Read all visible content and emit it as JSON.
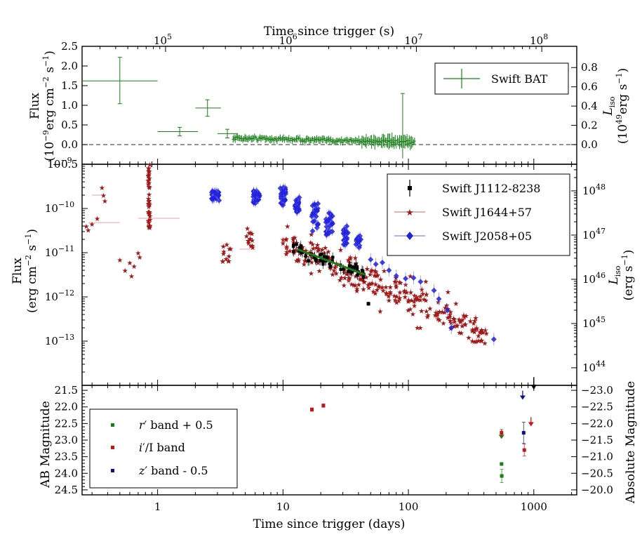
{
  "chart_data": [
    {
      "type": "scatter",
      "panel": "swift-bat",
      "top_xlabel": "Time since trigger (s)",
      "top_xticks": [
        "10",
        "10",
        "10",
        "10"
      ],
      "top_xtick_exps": [
        "5",
        "6",
        "7",
        "8"
      ],
      "top_xtick_values": [
        100000,
        1000000,
        10000000,
        100000000
      ],
      "xlim_days": [
        0.25,
        2200
      ],
      "ylim": [
        -0.5,
        2.5
      ],
      "yticks": [
        "2.5",
        "2.0",
        "1.5",
        "1.0",
        "0.5",
        "0.0",
        "−0.5"
      ],
      "ytick_values": [
        2.5,
        2.0,
        1.5,
        1.0,
        0.5,
        0.0,
        -0.5
      ],
      "ylabel_main": "Flux",
      "ylabel_units_a": "(10",
      "ylabel_units_exp": "−9",
      "ylabel_units_b": "erg cm",
      "ylabel_units_exp2": "−2",
      "ylabel_units_c": " s",
      "ylabel_units_exp3": "−1",
      "ylabel_units_d": ")",
      "right_ylabel_main": "L",
      "right_ylabel_sub": "iso",
      "right_ylabel_units_a": "(10",
      "right_ylabel_units_exp": "49",
      "right_ylabel_units_b": "erg s",
      "right_ylabel_units_exp2": "−1",
      "right_ylabel_units_c": ")",
      "right_ticks": [
        "0.8",
        "0.6",
        "0.4",
        "0.2",
        "0.0"
      ],
      "right_tick_values": [
        0.8,
        0.6,
        0.4,
        0.2,
        0.0
      ],
      "right_scale_flux_per_unit": 2.45,
      "zero_line": "dashed",
      "legend_entry": "Swift BAT",
      "legend_loc": "upper right",
      "color": "#1a7f1a",
      "big_points": [
        {
          "x": 0.5,
          "xlo": 0.25,
          "xhi": 1.0,
          "y": 1.62,
          "ylo": 1.04,
          "yhi": 2.22
        },
        {
          "x": 1.5,
          "xlo": 1.0,
          "xhi": 2.1,
          "y": 0.33,
          "ylo": 0.22,
          "yhi": 0.44
        },
        {
          "x": 2.5,
          "xlo": 2.0,
          "xhi": 3.2,
          "y": 0.93,
          "ylo": 0.72,
          "yhi": 1.14
        },
        {
          "x": 3.6,
          "xlo": 3.0,
          "xhi": 4.3,
          "y": 0.28,
          "ylo": 0.17,
          "yhi": 0.39
        }
      ],
      "dense_range_days": [
        4.0,
        112.0
      ],
      "dense_spike": {
        "x": 90,
        "y": 0.45,
        "ylo": -0.35,
        "yhi": 1.3
      }
    },
    {
      "type": "scatter",
      "panel": "xray",
      "xlim_days": [
        0.25,
        2200
      ],
      "yscale": "log",
      "ylim": [
        1e-14,
        1e-09
      ],
      "ylabel_main": "Flux",
      "ylabel_units_a": "(erg cm",
      "ylabel_units_exp": "−2",
      "ylabel_units_b": " s",
      "ylabel_units_exp2": "−1",
      "ylabel_units_c": ")",
      "yticks_base": [
        "10",
        "10",
        "10",
        "10",
        "10"
      ],
      "ytick_exps": [
        "−9",
        "−10",
        "−11",
        "−12",
        "−13"
      ],
      "ytick_values": [
        1e-09,
        1e-10,
        1e-11,
        1e-12,
        1e-13
      ],
      "right_ylabel_main": "L",
      "right_ylabel_sub": "iso",
      "right_ylabel_units_a": "(erg s",
      "right_ylabel_units_exp": "−1",
      "right_ylabel_units_b": ")",
      "right_ticks_base": [
        "10",
        "10",
        "10",
        "10",
        "10"
      ],
      "right_tick_exps": [
        "48",
        "47",
        "46",
        "45",
        "44"
      ],
      "right_tick_values": [
        1e+48,
        1e+47,
        1e+46,
        1e+45,
        1e+44
      ],
      "lum_per_flux": 4e+57,
      "legend_loc": "upper right",
      "series": [
        {
          "name": "Swift J1112-8238",
          "color": "#000000",
          "marker": "square",
          "range_days": [
            12,
            46
          ],
          "points_start": 1.2e-11,
          "points_end": 3.5e-12,
          "upper_limit": {
            "x": 1000,
            "y": 9.2e-15
          }
        },
        {
          "name": "Swift J1644+57",
          "color": "#a01818",
          "marker": "star",
          "range_days": [
            0.25,
            420
          ]
        },
        {
          "name": "Swift J2058+05",
          "color": "#2020dd",
          "marker": "diamond",
          "range_days": [
            2.7,
            480
          ]
        }
      ],
      "powerlaw_fit": {
        "color": "#1a7f1a",
        "x0": 13,
        "x1": 45,
        "y0": 1.2e-11,
        "y1": 3.2e-12
      }
    },
    {
      "type": "scatter",
      "panel": "optical",
      "xlim_days": [
        0.25,
        2200
      ],
      "xlabel": "Time since trigger (days)",
      "xticks": [
        "1",
        "10",
        "100",
        "1000"
      ],
      "xtick_values": [
        1,
        10,
        100,
        1000
      ],
      "ylim": [
        24.65,
        21.35
      ],
      "ylabel": "AB Magnitude",
      "yticks": [
        "21.5",
        "22.0",
        "22.5",
        "23.0",
        "23.5",
        "24.0",
        "24.5"
      ],
      "ytick_values": [
        21.5,
        22.0,
        22.5,
        23.0,
        23.5,
        24.0,
        24.5
      ],
      "right_ylabel": "Absolute Magnitude",
      "right_ticks": [
        "−23.0",
        "−22.5",
        "−22.0",
        "−21.5",
        "−21.0",
        "−20.5",
        "−20.0"
      ],
      "right_tick_values": [
        -23.0,
        -22.5,
        -22.0,
        -21.5,
        -21.0,
        -20.5,
        -20.0
      ],
      "distance_modulus": 44.5,
      "legend_loc": "lower left",
      "series": [
        {
          "name": "r′ band + 0.5",
          "label_italic": "r",
          "label_rest": "′ band + 0.5",
          "color": "#1a7f1a",
          "points": [
            {
              "x": 553,
              "y": 23.72,
              "err": 0.0
            },
            {
              "x": 555,
              "y": 24.08,
              "err": 0.2
            }
          ],
          "upper_limits": [
            {
              "x": 553,
              "y": 22.88
            }
          ]
        },
        {
          "name": "i′/I band",
          "label_italic": "i",
          "label_rest": "′/I band",
          "color": "#c01818",
          "points": [
            {
              "x": 17,
              "y": 22.08,
              "err": 0.05
            },
            {
              "x": 21,
              "y": 21.96,
              "err": 0.05
            },
            {
              "x": 553,
              "y": 22.78,
              "err": 0.1
            },
            {
              "x": 840,
              "y": 23.3,
              "err": 0.18
            }
          ],
          "upper_limits": [
            {
              "x": 950,
              "y": 22.5
            }
          ]
        },
        {
          "name": "z′ band - 0.5",
          "label_italic": "z",
          "label_rest": "′ band - 0.5",
          "color": "#10108a",
          "points": [
            {
              "x": 830,
              "y": 22.78,
              "err": 0.32
            }
          ],
          "upper_limits": [
            {
              "x": 815,
              "y": 21.7
            }
          ]
        }
      ]
    }
  ]
}
